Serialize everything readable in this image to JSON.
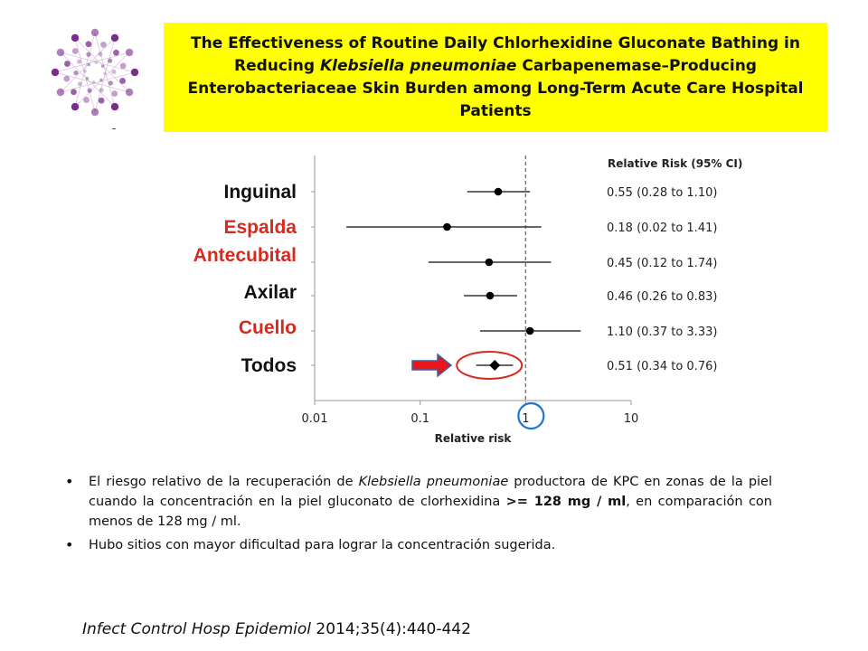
{
  "header": {
    "title_pre": "The Effectiveness of Routine Daily Chlorhexidine Gluconate Bathing in Reducing ",
    "title_italic": "Klebsiella pneumoniae",
    "title_post": " Carbapenemase–Producing Enterobacteriaceae Skin Burden among Long-Term Acute Care Hospital Patients",
    "logo_caption": "-"
  },
  "colors": {
    "title_bg": "#ffff00",
    "label_black": "#111111",
    "label_red": "#d62a1e",
    "arrow_red": "#e8151b",
    "arrow_blue_outline": "#3b5ea8",
    "ellipse_red": "#d62a1e",
    "circle_blue": "#1e73d2",
    "logo_purple": "#7a2d8c"
  },
  "chart_data": {
    "type": "forest",
    "x_scale": "log",
    "xlim": [
      0.01,
      10
    ],
    "x_ticks": [
      "0.01",
      "0.1",
      "1",
      "10"
    ],
    "xlabel": "Relative risk",
    "reference_line": 1,
    "ci_header": "Relative Risk (95%  CI)",
    "rows": [
      {
        "label": "Inguinal",
        "label_color": "black",
        "estimate": 0.55,
        "lower": 0.28,
        "upper": 1.1,
        "ci_text": "0.55 (0.28 to 1.10)",
        "marker": "circle"
      },
      {
        "label": "Espalda",
        "label_color": "red",
        "estimate": 0.18,
        "lower": 0.02,
        "upper": 1.41,
        "ci_text": "0.18 (0.02 to 1.41)",
        "marker": "circle"
      },
      {
        "label": "Antecubital",
        "label_color": "red",
        "estimate": 0.45,
        "lower": 0.12,
        "upper": 1.74,
        "ci_text": "0.45 (0.12 to 1.74)",
        "marker": "circle"
      },
      {
        "label": "Axilar",
        "label_color": "black",
        "estimate": 0.46,
        "lower": 0.26,
        "upper": 0.83,
        "ci_text": "0.46 (0.26 to 0.83)",
        "marker": "circle"
      },
      {
        "label": "Cuello",
        "label_color": "red",
        "estimate": 1.1,
        "lower": 0.37,
        "upper": 3.33,
        "ci_text": "1.10 (0.37 to 3.33)",
        "marker": "circle"
      },
      {
        "label": "Todos",
        "label_color": "black",
        "estimate": 0.51,
        "lower": 0.34,
        "upper": 0.76,
        "ci_text": "0.51 (0.34 to 0.76)",
        "marker": "diamond"
      }
    ]
  },
  "bullets": [
    {
      "pre": "El riesgo relativo de la recuperación de ",
      "italic": "Klebsiella pneumoniae",
      "mid": " productora de KPC en zonas de la piel cuando la concentración en la piel gluconato de clorhexidina ",
      "bold": ">= 128 mg / ml",
      "post": ", en comparación con menos de 128 mg / ml."
    },
    {
      "text": "Hubo sitios con mayor dificultad para lograr la concentración sugerida."
    }
  ],
  "citation": {
    "journal": "Infect Control Hosp Epidemiol",
    "ref": " 2014;35(4):440-442"
  }
}
